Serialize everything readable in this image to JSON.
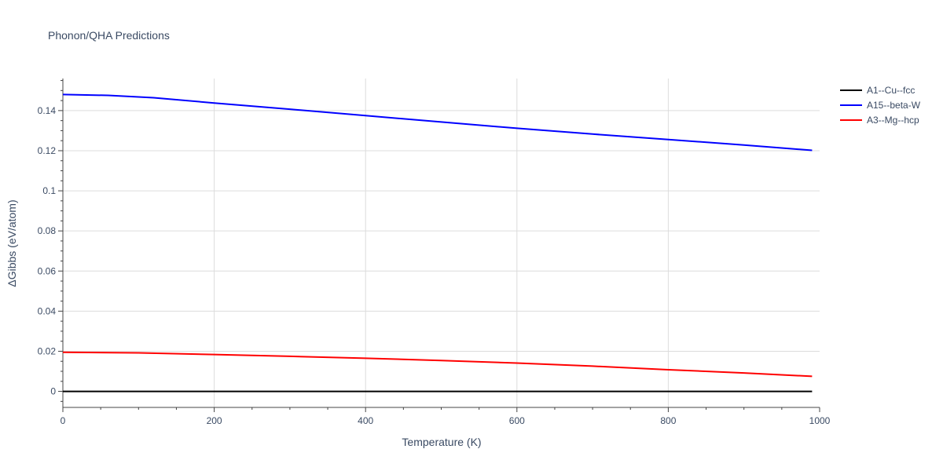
{
  "chart_data": {
    "type": "line",
    "title": "Phonon/QHA Predictions",
    "xlabel": "Temperature (K)",
    "ylabel": "ΔGibbs (eV/atom)",
    "xlim": [
      0,
      1000
    ],
    "ylim": [
      -0.008,
      0.156
    ],
    "xticks": [
      0,
      200,
      400,
      600,
      800,
      1000
    ],
    "xtick_labels": [
      "0",
      "200",
      "400",
      "600",
      "800",
      "1000"
    ],
    "yticks": [
      0,
      0.02,
      0.04,
      0.06,
      0.08,
      0.1,
      0.12,
      0.14
    ],
    "ytick_labels": [
      "0",
      "0.02",
      "0.04",
      "0.06",
      "0.08",
      "0.1",
      "0.12",
      "0.14"
    ],
    "grid": true,
    "legend_position": "top-right",
    "series": [
      {
        "name": "A1--Cu--fcc",
        "color": "#000000",
        "x": [
          0,
          990
        ],
        "y": [
          0,
          0
        ]
      },
      {
        "name": "A15--beta-W",
        "color": "#0000ff",
        "x": [
          0,
          60,
          120,
          200,
          300,
          400,
          500,
          600,
          700,
          800,
          900,
          990
        ],
        "y": [
          0.148,
          0.1476,
          0.1464,
          0.1438,
          0.1407,
          0.1375,
          0.1343,
          0.1312,
          0.1283,
          0.1256,
          0.1228,
          0.1202
        ]
      },
      {
        "name": "A3--Mg--hcp",
        "color": "#ff0000",
        "x": [
          0,
          100,
          200,
          300,
          400,
          500,
          600,
          700,
          800,
          900,
          990
        ],
        "y": [
          0.0195,
          0.0192,
          0.0184,
          0.0175,
          0.0165,
          0.0154,
          0.0141,
          0.0126,
          0.0108,
          0.0092,
          0.0075
        ]
      }
    ]
  }
}
